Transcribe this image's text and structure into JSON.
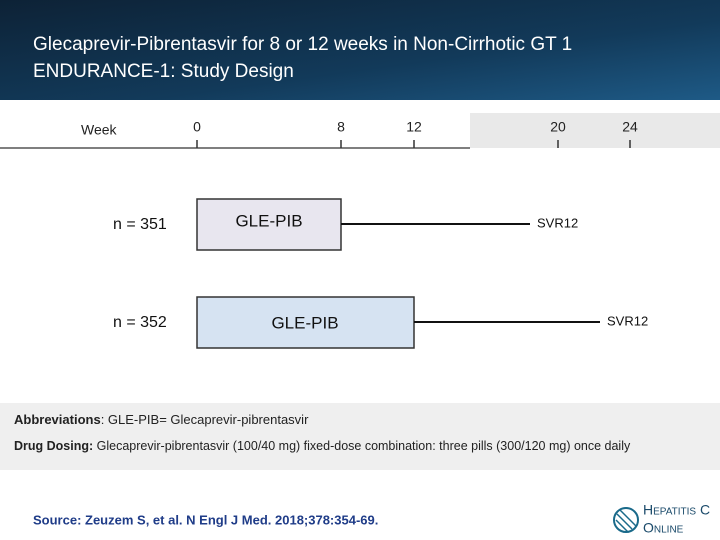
{
  "header": {
    "title_lines": [
      "Glecaprevir-Pibrentasvir for 8 or 12 weeks in Non-Cirrhotic GT 1",
      "ENDURANCE-1: Study Design"
    ]
  },
  "timeline": {
    "label": "Week",
    "ticks": [
      0,
      8,
      12,
      20,
      24
    ]
  },
  "arms": [
    {
      "n": "n = 351",
      "treatment": "GLE-PIB",
      "followup": "SVR12"
    },
    {
      "n": "n = 352",
      "treatment": "GLE-PIB",
      "followup": "SVR12"
    }
  ],
  "notes": {
    "abbreviations_label": "Abbreviations",
    "abbreviations_text": ": GLE-PIB= Glecaprevir-pibrentasvir",
    "dosing_label": "Drug Dosing:",
    "dosing_text": " Glecaprevir-pibrentasvir (100/40 mg) fixed-dose combination: three pills (300/120 mg) once daily"
  },
  "source": "Source: Zeuzem S, et al. N Engl J Med. 2018;378:354-69.",
  "logo": {
    "line1": "Hepatitis C",
    "line2": "Online"
  }
}
